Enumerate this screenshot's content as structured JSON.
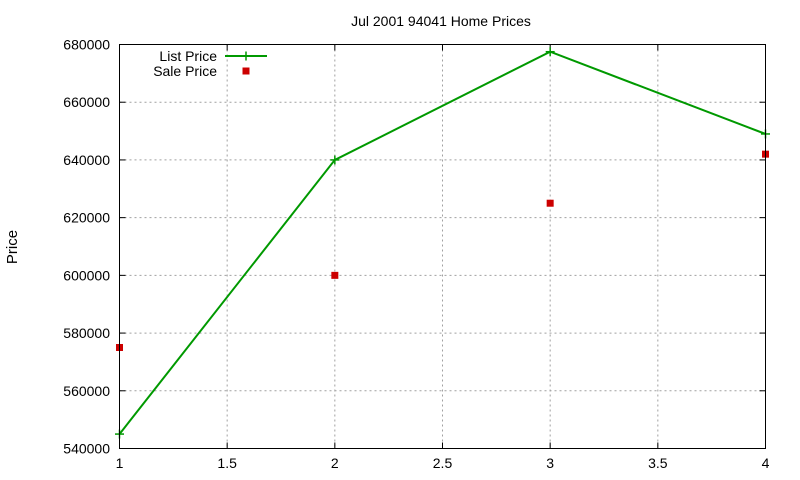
{
  "chart_data": {
    "type": "line",
    "title": "Jul 2001 94041 Home Prices",
    "xlabel": "",
    "ylabel": "Price",
    "xlim": [
      1,
      4
    ],
    "ylim": [
      540000,
      680000
    ],
    "xticks": [
      "1",
      "1.5",
      "2",
      "2.5",
      "3",
      "3.5",
      "4"
    ],
    "xtick_values": [
      1,
      1.5,
      2,
      2.5,
      3,
      3.5,
      4
    ],
    "yticks": [
      "540000",
      "560000",
      "580000",
      "600000",
      "620000",
      "640000",
      "660000",
      "680000"
    ],
    "ytick_values": [
      540000,
      560000,
      580000,
      600000,
      620000,
      640000,
      660000,
      680000
    ],
    "grid": true,
    "legend_position": "top-left",
    "series": [
      {
        "name": "List Price",
        "style": "linespoints",
        "marker": "plus",
        "color": "#009900",
        "x": [
          1,
          2,
          3,
          4
        ],
        "y": [
          545000,
          640000,
          677500,
          649000
        ]
      },
      {
        "name": "Sale Price",
        "style": "points",
        "marker": "square",
        "color": "#cc0000",
        "x": [
          1,
          2,
          3,
          4
        ],
        "y": [
          575000,
          600000,
          625000,
          642000
        ]
      }
    ]
  }
}
